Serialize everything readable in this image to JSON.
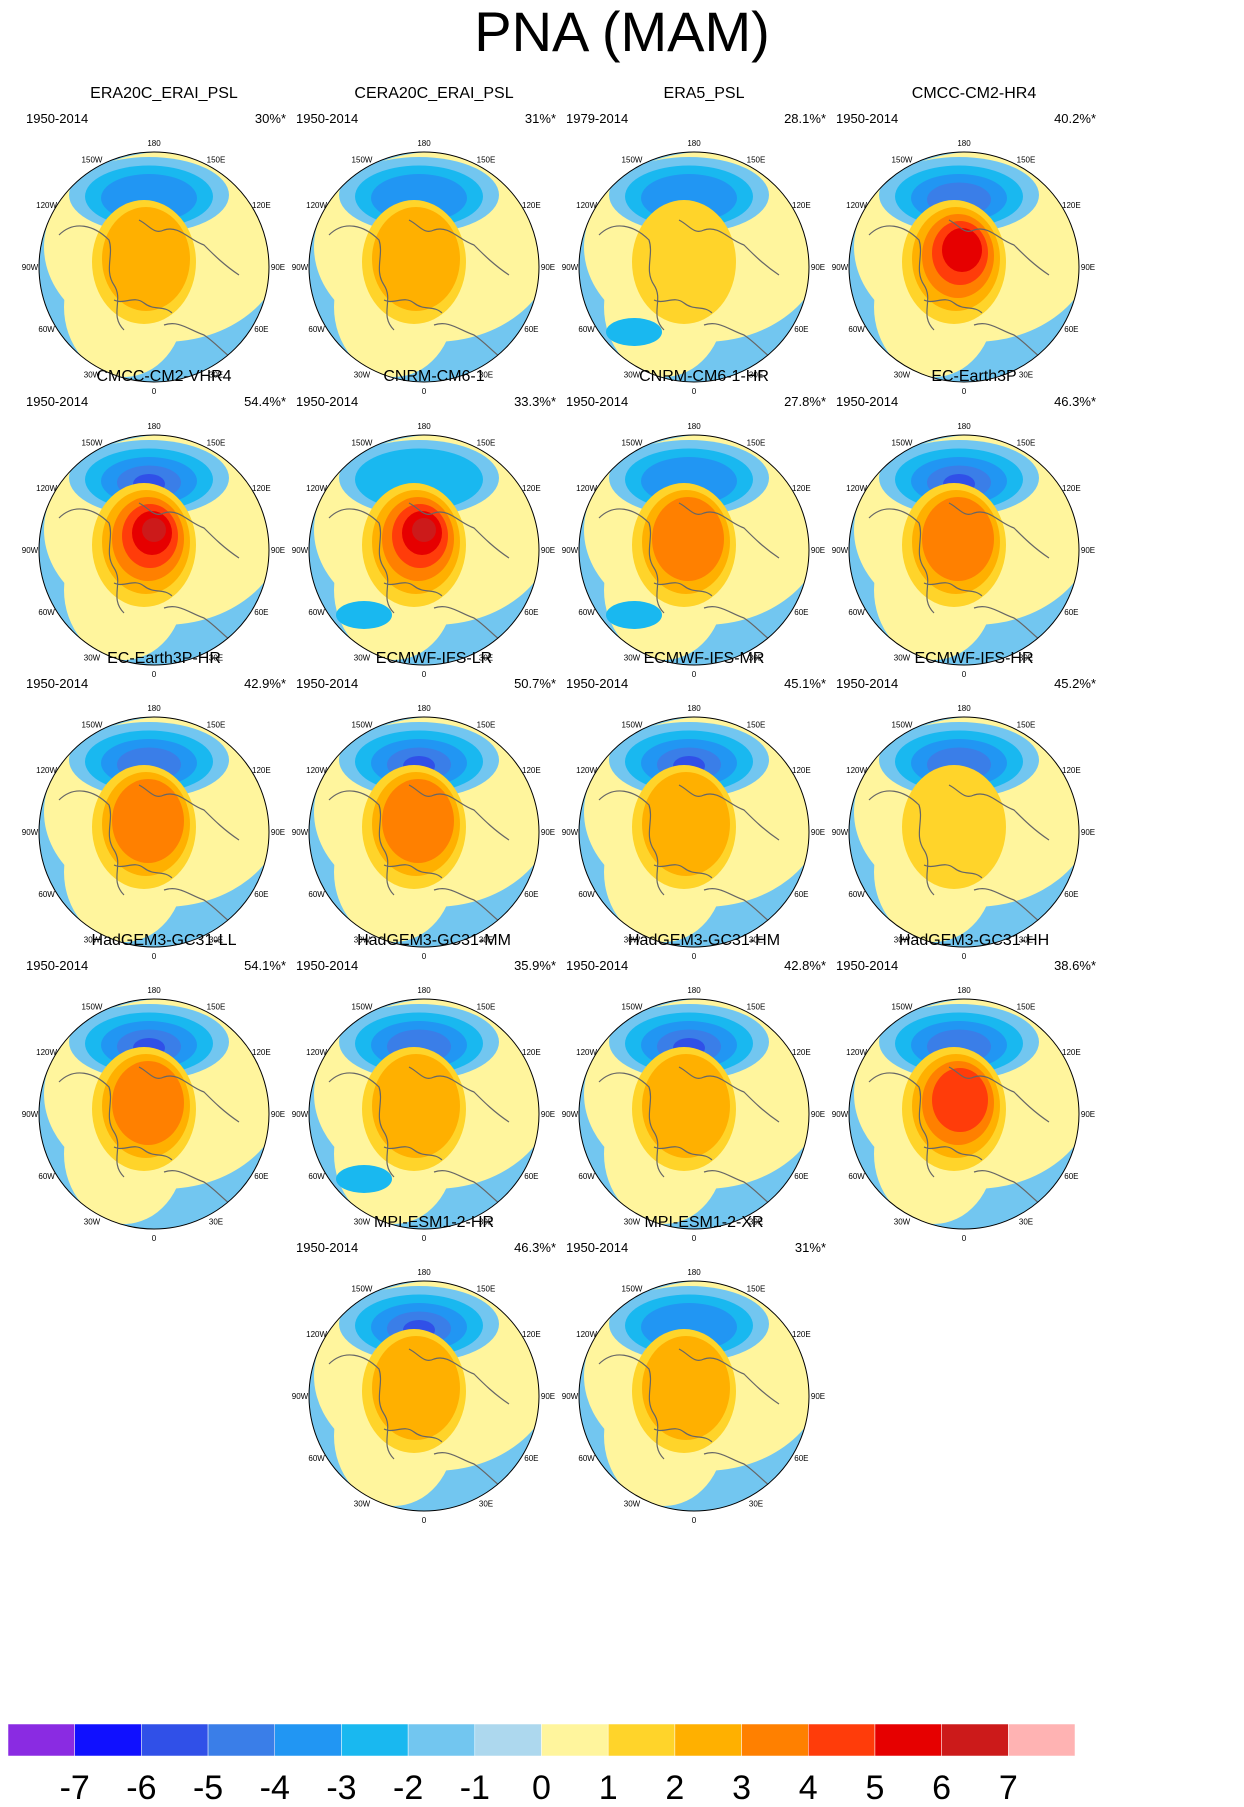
{
  "title": "PNA (MAM)",
  "panels": [
    {
      "name": "ERA20C_ERAI_PSL",
      "years": "1950-2014",
      "pct": "30%*",
      "center_max": 2,
      "blue_min": -3,
      "extra_blue": false
    },
    {
      "name": "CERA20C_ERAI_PSL",
      "years": "1950-2014",
      "pct": "31%*",
      "center_max": 2,
      "blue_min": -3,
      "extra_blue": false
    },
    {
      "name": "ERA5_PSL",
      "years": "1979-2014",
      "pct": "28.1%*",
      "center_max": 1,
      "blue_min": -3,
      "extra_blue": true
    },
    {
      "name": "CMCC-CM2-HR4",
      "years": "1950-2014",
      "pct": "40.2%*",
      "center_max": 5,
      "blue_min": -4,
      "extra_blue": false
    },
    {
      "name": "CMCC-CM2-VHR4",
      "years": "1950-2014",
      "pct": "54.4%*",
      "center_max": 6,
      "blue_min": -5,
      "extra_blue": false
    },
    {
      "name": "CNRM-CM6-1",
      "years": "1950-2014",
      "pct": "33.3%*",
      "center_max": 6,
      "blue_min": -2,
      "extra_blue": true
    },
    {
      "name": "CNRM-CM6-1-HR",
      "years": "1950-2014",
      "pct": "27.8%*",
      "center_max": 3,
      "blue_min": -3,
      "extra_blue": true
    },
    {
      "name": "EC-Earth3P",
      "years": "1950-2014",
      "pct": "46.3%*",
      "center_max": 3,
      "blue_min": -5,
      "extra_blue": false
    },
    {
      "name": "EC-Earth3P-HR",
      "years": "1950-2014",
      "pct": "42.9%*",
      "center_max": 3,
      "blue_min": -4,
      "extra_blue": false
    },
    {
      "name": "ECMWF-IFS-LR",
      "years": "1950-2014",
      "pct": "50.7%*",
      "center_max": 3,
      "blue_min": -5,
      "extra_blue": false
    },
    {
      "name": "ECMWF-IFS-MR",
      "years": "1950-2014",
      "pct": "45.1%*",
      "center_max": 2,
      "blue_min": -5,
      "extra_blue": false
    },
    {
      "name": "ECMWF-IFS-HR",
      "years": "1950-2014",
      "pct": "45.2%*",
      "center_max": 1,
      "blue_min": -4,
      "extra_blue": false
    },
    {
      "name": "HadGEM3-GC31-LL",
      "years": "1950-2014",
      "pct": "54.1%*",
      "center_max": 3,
      "blue_min": -5,
      "extra_blue": false
    },
    {
      "name": "HadGEM3-GC31-MM",
      "years": "1950-2014",
      "pct": "35.9%*",
      "center_max": 2,
      "blue_min": -4,
      "extra_blue": true
    },
    {
      "name": "HadGEM3-GC31-HM",
      "years": "1950-2014",
      "pct": "42.8%*",
      "center_max": 2,
      "blue_min": -5,
      "extra_blue": false
    },
    {
      "name": "HadGEM3-GC31-HH",
      "years": "1950-2014",
      "pct": "38.6%*",
      "center_max": 4,
      "blue_min": -4,
      "extra_blue": false
    },
    {
      "name": "MPI-ESM1-2-HR",
      "years": "1950-2014",
      "pct": "46.3%*",
      "center_max": 2,
      "blue_min": -5,
      "extra_blue": false
    },
    {
      "name": "MPI-ESM1-2-XR",
      "years": "1950-2014",
      "pct": "31%*",
      "center_max": 2,
      "blue_min": -3,
      "extra_blue": false
    }
  ],
  "lon_labels": [
    "180",
    "150E",
    "120E",
    "90E",
    "60E",
    "30E",
    "0",
    "30W",
    "60W",
    "90W",
    "120W",
    "150W"
  ],
  "colorbar": {
    "colors": [
      "#8a2be2",
      "#1010ff",
      "#3050e8",
      "#3a7ee8",
      "#2196f3",
      "#19b8f0",
      "#72c6f0",
      "#add8ee",
      "#fff59d",
      "#ffd42a",
      "#ffb000",
      "#ff8000",
      "#ff3c0a",
      "#e60000",
      "#cc1a1a",
      "#ffb3b3"
    ],
    "ticks": [
      "-7",
      "-6",
      "-5",
      "-4",
      "-3",
      "-2",
      "-1",
      "0",
      "1",
      "2",
      "3",
      "4",
      "5",
      "6",
      "7"
    ]
  }
}
